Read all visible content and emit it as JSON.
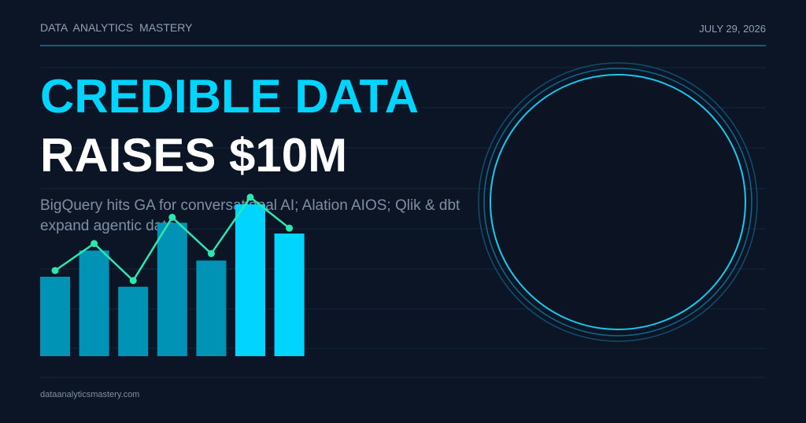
{
  "header": {
    "brand": "DATA  ANALYTICS  MASTERY",
    "date": "JULY 29, 2026"
  },
  "headline": {
    "line1": "CREDIBLE DATA",
    "line2": "RAISES $10M"
  },
  "subtitle": {
    "line1": "BigQuery hits GA for conversational AI; Alation AIOS; Qlik & dbt",
    "line2": "expand agentic data"
  },
  "footer": {
    "site": "dataanalyticsmastery.com"
  },
  "chart_data": {
    "type": "bar",
    "ylim": [
      0,
      210
    ],
    "bar_colors": [
      "#0093b5",
      "#0093b5",
      "#0093b5",
      "#0093b5",
      "#0093b5",
      "#00d4ff",
      "#00d4ff"
    ],
    "values": [
      103,
      137,
      90,
      173,
      124,
      197,
      159
    ],
    "line": {
      "color": "#2ee6b0",
      "values": [
        111,
        146,
        98,
        180,
        133,
        206,
        166
      ]
    }
  }
}
